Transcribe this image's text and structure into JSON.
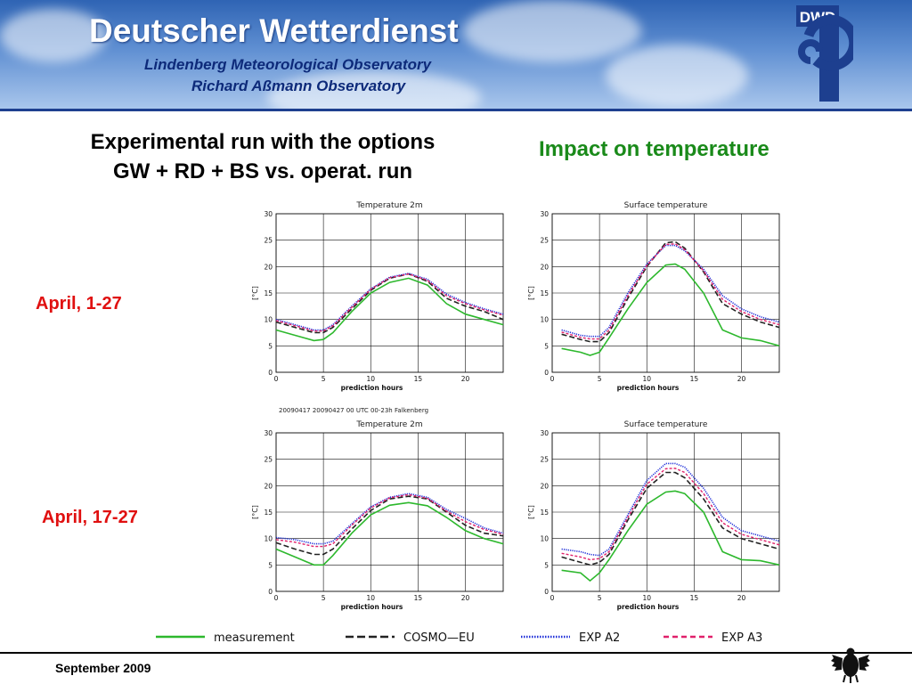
{
  "banner": {
    "title": "Deutscher Wetterdienst",
    "subtitle1": "Lindenberg Meteorological Observatory",
    "subtitle2": "Richard Aßmann Observatory",
    "logo_text": "DWD"
  },
  "heading": {
    "line1": "Experimental run with the options",
    "line2": "GW + RD + BS  vs. operat. run",
    "impact": "Impact on temperature"
  },
  "periods": [
    "April, 1-27",
    "April, 17-27"
  ],
  "meta_text": "20090417 20090427 00 UTC 00-23h     Falkenberg",
  "legend": [
    "measurement",
    "COSMO—EU",
    "EXP A2",
    "EXP A3"
  ],
  "footer": "September 2009",
  "colors": {
    "measurement": "#2db82d",
    "cosmo": "#222222",
    "exp_a2": "#1f2fd8",
    "exp_a3": "#e0206a",
    "period": "#e01010",
    "impact": "#1a8a1a"
  },
  "chart_data": [
    {
      "type": "line",
      "title": "Temperature 2m",
      "xlabel": "prediction hours",
      "ylabel": "[°C]",
      "xlim": [
        0,
        24
      ],
      "ylim": [
        0,
        30
      ],
      "xticks": [
        0,
        5,
        10,
        15,
        20
      ],
      "yticks": [
        0,
        5,
        10,
        15,
        20,
        25,
        30
      ],
      "grid": true,
      "x": [
        0,
        2,
        4,
        5,
        6,
        8,
        10,
        12,
        14,
        16,
        18,
        20,
        22,
        24
      ],
      "series": [
        {
          "name": "measurement",
          "values": [
            8,
            7,
            6,
            6.2,
            7.5,
            11.5,
            15,
            17,
            17.8,
            16.5,
            13,
            11,
            10,
            9
          ]
        },
        {
          "name": "COSMO—EU",
          "values": [
            9.5,
            8.5,
            7.5,
            7.5,
            8.5,
            12,
            15.5,
            17.8,
            18.6,
            17.2,
            14,
            12.5,
            11.5,
            10
          ]
        },
        {
          "name": "EXP A2",
          "values": [
            10,
            9,
            8,
            8,
            9,
            12.5,
            15.8,
            18,
            18.7,
            17.6,
            14.8,
            13.2,
            12,
            11
          ]
        },
        {
          "name": "EXP A3",
          "values": [
            9.8,
            8.8,
            7.8,
            7.8,
            8.8,
            12.3,
            15.7,
            17.9,
            18.6,
            17.4,
            14.5,
            13,
            11.8,
            10.8
          ]
        }
      ]
    },
    {
      "type": "line",
      "title": "Surface temperature",
      "xlabel": "prediction hours",
      "ylabel": "[°C]",
      "xlim": [
        0,
        24
      ],
      "ylim": [
        0,
        30
      ],
      "xticks": [
        0,
        5,
        10,
        15,
        20
      ],
      "yticks": [
        0,
        5,
        10,
        15,
        20,
        25,
        30
      ],
      "grid": true,
      "x": [
        1,
        3,
        4,
        5,
        6,
        8,
        10,
        12,
        13,
        14,
        16,
        18,
        20,
        22,
        24
      ],
      "series": [
        {
          "name": "measurement",
          "values": [
            4.5,
            3.8,
            3.2,
            3.8,
            6.5,
            12,
            17,
            20.3,
            20.5,
            19.5,
            15,
            8,
            6.5,
            6,
            5
          ]
        },
        {
          "name": "COSMO—EU",
          "values": [
            7.2,
            6.2,
            5.8,
            5.8,
            7.5,
            14,
            20,
            24.5,
            24.7,
            23.5,
            19,
            13,
            11,
            9.5,
            8.5
          ]
        },
        {
          "name": "EXP A2",
          "values": [
            8,
            7,
            6.8,
            6.8,
            8.5,
            15,
            20.5,
            24,
            24,
            23,
            19.5,
            14.5,
            12,
            10.5,
            9.5
          ]
        },
        {
          "name": "EXP A3",
          "values": [
            7.6,
            6.6,
            6.3,
            6.3,
            8,
            14.5,
            20.2,
            24.2,
            24.3,
            23.2,
            19.2,
            13.8,
            11.5,
            10,
            9
          ]
        }
      ]
    },
    {
      "type": "line",
      "title": "Temperature 2m",
      "xlabel": "prediction hours",
      "ylabel": "[°C]",
      "xlim": [
        0,
        24
      ],
      "ylim": [
        0,
        30
      ],
      "xticks": [
        0,
        5,
        10,
        15,
        20
      ],
      "yticks": [
        0,
        5,
        10,
        15,
        20,
        25,
        30
      ],
      "grid": true,
      "x": [
        0,
        2,
        4,
        5,
        6,
        8,
        10,
        12,
        14,
        16,
        18,
        20,
        22,
        24
      ],
      "series": [
        {
          "name": "measurement",
          "values": [
            8,
            6.5,
            5,
            5,
            6.8,
            11,
            14.5,
            16.3,
            16.8,
            16.2,
            14,
            11.5,
            10,
            9
          ]
        },
        {
          "name": "COSMO—EU",
          "values": [
            9.2,
            8,
            7,
            7,
            8,
            11.8,
            15.3,
            17.5,
            18,
            17.5,
            15,
            12.5,
            11,
            10.5
          ]
        },
        {
          "name": "EXP A2",
          "values": [
            10.2,
            9.8,
            9,
            9,
            9.5,
            12.8,
            16,
            17.8,
            18.5,
            17.8,
            15.5,
            13.8,
            12,
            11
          ]
        },
        {
          "name": "EXP A3",
          "values": [
            9.8,
            9.3,
            8.5,
            8.5,
            9,
            12.5,
            15.8,
            17.7,
            18.3,
            17.6,
            15.2,
            13.2,
            11.7,
            10.8
          ]
        }
      ]
    },
    {
      "type": "line",
      "title": "Surface temperature",
      "xlabel": "prediction hours",
      "ylabel": "[°C]",
      "xlim": [
        0,
        24
      ],
      "ylim": [
        0,
        30
      ],
      "xticks": [
        0,
        5,
        10,
        15,
        20
      ],
      "yticks": [
        0,
        5,
        10,
        15,
        20,
        25,
        30
      ],
      "grid": true,
      "x": [
        1,
        3,
        4,
        5,
        6,
        8,
        10,
        12,
        13,
        14,
        16,
        18,
        20,
        22,
        24
      ],
      "series": [
        {
          "name": "measurement",
          "values": [
            4,
            3.5,
            2,
            3.5,
            6,
            11.5,
            16.5,
            18.8,
            19,
            18.5,
            15,
            7.5,
            6,
            5.8,
            5
          ]
        },
        {
          "name": "COSMO—EU",
          "values": [
            6.5,
            5.5,
            5,
            5.5,
            7,
            13.5,
            19.5,
            22.5,
            22.5,
            21.5,
            17.5,
            12,
            10,
            9,
            8
          ]
        },
        {
          "name": "EXP A2",
          "values": [
            8,
            7.5,
            7,
            6.8,
            8,
            14.5,
            21,
            24.2,
            24.2,
            23.5,
            19.5,
            14,
            11.5,
            10.5,
            9.5
          ]
        },
        {
          "name": "EXP A3",
          "values": [
            7.2,
            6.5,
            6,
            6.2,
            7.5,
            14,
            20.3,
            23.2,
            23.3,
            22.5,
            18.5,
            13,
            10.8,
            9.8,
            8.8
          ]
        }
      ]
    }
  ]
}
